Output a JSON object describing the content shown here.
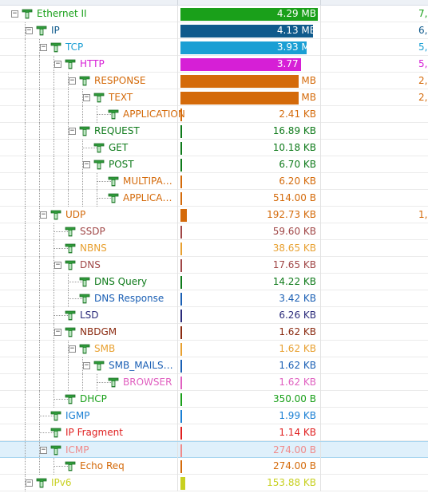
{
  "tree": {
    "rows": [
      {
        "label": "Ethernet II",
        "size": "4.29 MB",
        "color": "#1aa01a",
        "bar": 1.0,
        "bar_color": "#1aa01a",
        "pct": "7,",
        "pct_color": "#1aa01a",
        "depth": 0,
        "expander": "minus"
      },
      {
        "label": "IP",
        "size": "4.13 MB",
        "color": "#0f5a8c",
        "bar": 0.963,
        "bar_color": "#0f5a8c",
        "pct": "6,",
        "pct_color": "#0f5a8c",
        "depth": 1,
        "expander": "minus"
      },
      {
        "label": "TCP",
        "size": "3.93 MB",
        "color": "#1a9fd4",
        "bar": 0.916,
        "bar_color": "#1a9fd4",
        "pct": "5,",
        "pct_color": "#1a9fd4",
        "depth": 2,
        "expander": "minus"
      },
      {
        "label": "HTTP",
        "size": "3.77 MB",
        "color": "#d61fd6",
        "bar": 0.879,
        "bar_color": "#d61fd6",
        "pct": "5,",
        "pct_color": "#d61fd6",
        "depth": 3,
        "expander": "minus"
      },
      {
        "label": "RESPONSE",
        "size": "3.70 MB",
        "color": "#d46a0a",
        "bar": 0.862,
        "bar_color": "#d46a0a",
        "pct": "2,",
        "pct_color": "#d46a0a",
        "depth": 4,
        "expander": "minus"
      },
      {
        "label": "TEXT",
        "size": "3.69 MB",
        "color": "#d46a0a",
        "bar": 0.86,
        "bar_color": "#d46a0a",
        "pct": "2,",
        "pct_color": "#d46a0a",
        "depth": 5,
        "expander": "minus"
      },
      {
        "label": "APPLICATION",
        "size": "2.41 KB",
        "color": "#d46a0a",
        "bar": 0.0005,
        "bar_color": "#d46a0a",
        "pct": "",
        "pct_color": "#d46a0a",
        "depth": 6,
        "expander": "none"
      },
      {
        "label": "REQUEST",
        "size": "16.89 KB",
        "color": "#0e7a1a",
        "bar": 0.004,
        "bar_color": "#0e7a1a",
        "pct": "",
        "pct_color": "#0e7a1a",
        "depth": 4,
        "expander": "minus"
      },
      {
        "label": "GET",
        "size": "10.18 KB",
        "color": "#0e7a1a",
        "bar": 0.0023,
        "bar_color": "#0e7a1a",
        "pct": "",
        "pct_color": "#0e7a1a",
        "depth": 5,
        "expander": "none"
      },
      {
        "label": "POST",
        "size": "6.70 KB",
        "color": "#0e7a1a",
        "bar": 0.0015,
        "bar_color": "#0e7a1a",
        "pct": "",
        "pct_color": "#0e7a1a",
        "depth": 5,
        "expander": "minus"
      },
      {
        "label": "MULTIPA…",
        "size": "6.20 KB",
        "color": "#d46a0a",
        "bar": 0.0014,
        "bar_color": "#d46a0a",
        "pct": "",
        "pct_color": "#d46a0a",
        "depth": 6,
        "expander": "none"
      },
      {
        "label": "APPLICA…",
        "size": "514.00 B",
        "color": "#d46a0a",
        "bar": 0.0001,
        "bar_color": "#d46a0a",
        "pct": "",
        "pct_color": "#d46a0a",
        "depth": 6,
        "expander": "none"
      },
      {
        "label": "UDP",
        "size": "192.73 KB",
        "color": "#d46a0a",
        "bar": 0.044,
        "bar_color": "#d46a0a",
        "pct": "1,",
        "pct_color": "#d46a0a",
        "depth": 2,
        "expander": "minus"
      },
      {
        "label": "SSDP",
        "size": "59.60 KB",
        "color": "#a04646",
        "bar": 0.0136,
        "bar_color": "#a04646",
        "pct": "",
        "pct_color": "#a04646",
        "depth": 3,
        "expander": "none"
      },
      {
        "label": "NBNS",
        "size": "38.65 KB",
        "color": "#e8a030",
        "bar": 0.0088,
        "bar_color": "#e8a030",
        "pct": "",
        "pct_color": "#e8a030",
        "depth": 3,
        "expander": "none"
      },
      {
        "label": "DNS",
        "size": "17.65 KB",
        "color": "#a04646",
        "bar": 0.004,
        "bar_color": "#a04646",
        "pct": "",
        "pct_color": "#a04646",
        "depth": 3,
        "expander": "minus"
      },
      {
        "label": "DNS Query",
        "size": "14.22 KB",
        "color": "#0e7a1a",
        "bar": 0.0032,
        "bar_color": "#0e7a1a",
        "pct": "",
        "pct_color": "#0e7a1a",
        "depth": 4,
        "expander": "none"
      },
      {
        "label": "DNS Response",
        "size": "3.42 KB",
        "color": "#1a5fb4",
        "bar": 0.0008,
        "bar_color": "#1a5fb4",
        "pct": "",
        "pct_color": "#1a5fb4",
        "depth": 4,
        "expander": "none"
      },
      {
        "label": "LSD",
        "size": "6.26 KB",
        "color": "#2a2a7a",
        "bar": 0.0014,
        "bar_color": "#2a2a7a",
        "pct": "",
        "pct_color": "#2a2a7a",
        "depth": 3,
        "expander": "none"
      },
      {
        "label": "NBDGM",
        "size": "1.62 KB",
        "color": "#8a2a10",
        "bar": 0.0004,
        "bar_color": "#8a2a10",
        "pct": "",
        "pct_color": "#8a2a10",
        "depth": 3,
        "expander": "minus"
      },
      {
        "label": "SMB",
        "size": "1.62 KB",
        "color": "#e8a030",
        "bar": 0.0004,
        "bar_color": "#e8a030",
        "pct": "",
        "pct_color": "#e8a030",
        "depth": 4,
        "expander": "minus"
      },
      {
        "label": "SMB_MAILS…",
        "size": "1.62 KB",
        "color": "#1a5fb4",
        "bar": 0.0004,
        "bar_color": "#1a5fb4",
        "pct": "",
        "pct_color": "#1a5fb4",
        "depth": 5,
        "expander": "minus"
      },
      {
        "label": "BROWSER",
        "size": "1.62 KB",
        "color": "#e060c0",
        "bar": 0.0004,
        "bar_color": "#e060c0",
        "pct": "",
        "pct_color": "#e060c0",
        "depth": 6,
        "expander": "none"
      },
      {
        "label": "DHCP",
        "size": "350.00 B",
        "color": "#1aa01a",
        "bar": 0.0001,
        "bar_color": "#1aa01a",
        "pct": "",
        "pct_color": "#1aa01a",
        "depth": 3,
        "expander": "none"
      },
      {
        "label": "IGMP",
        "size": "1.99 KB",
        "color": "#1a7fd4",
        "bar": 0.0005,
        "bar_color": "#1a7fd4",
        "pct": "",
        "pct_color": "#1a7fd4",
        "depth": 2,
        "expander": "none"
      },
      {
        "label": "IP Fragment",
        "size": "1.14 KB",
        "color": "#e02020",
        "bar": 0.0003,
        "bar_color": "#e02020",
        "pct": "",
        "pct_color": "#e02020",
        "depth": 2,
        "expander": "none"
      },
      {
        "label": "ICMP",
        "size": "274.00 B",
        "color": "#f08a8a",
        "bar": 0.0001,
        "bar_color": "#f08a8a",
        "pct": "",
        "pct_color": "#f08a8a",
        "depth": 2,
        "expander": "minus",
        "selected": true
      },
      {
        "label": "Echo Req",
        "size": "274.00 B",
        "color": "#d46a0a",
        "bar": 0.0001,
        "bar_color": "#d46a0a",
        "pct": "",
        "pct_color": "#d46a0a",
        "depth": 3,
        "expander": "none"
      },
      {
        "label": "IPv6",
        "size": "153.88 KB",
        "color": "#c8d020",
        "bar": 0.035,
        "bar_color": "#c8d020",
        "pct": "",
        "pct_color": "#c8d020",
        "depth": 1,
        "expander": "minus"
      }
    ]
  },
  "icon_name": "protocol-node-icon",
  "expander_glyphs": {
    "minus": "−"
  }
}
